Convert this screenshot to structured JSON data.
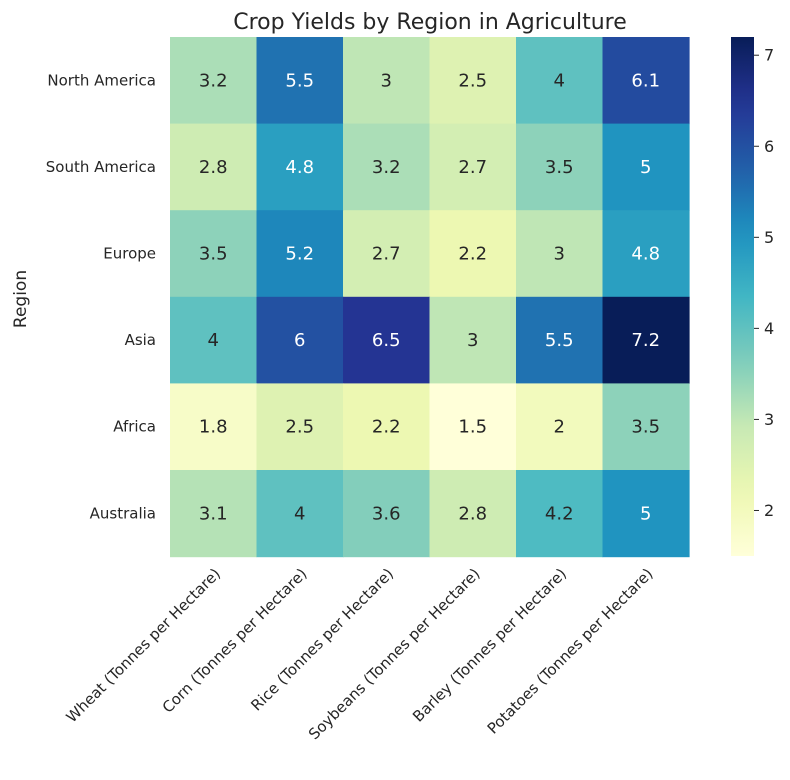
{
  "chart_data": {
    "type": "heatmap",
    "title": "Crop Yields by Region in Agriculture",
    "ylabel": "Region",
    "xlabel": "",
    "columns": [
      "Wheat (Tonnes per Hectare)",
      "Corn (Tonnes per Hectare)",
      "Rice (Tonnes per Hectare)",
      "Soybeans (Tonnes per Hectare)",
      "Barley (Tonnes per Hectare)",
      "Potatoes (Tonnes per Hectare)"
    ],
    "rows": [
      "North America",
      "South America",
      "Europe",
      "Asia",
      "Africa",
      "Australia"
    ],
    "values": [
      [
        3.2,
        5.5,
        3.0,
        2.5,
        4.0,
        6.1
      ],
      [
        2.8,
        4.8,
        3.2,
        2.7,
        3.5,
        5.0
      ],
      [
        3.5,
        5.2,
        2.7,
        2.2,
        3.0,
        4.8
      ],
      [
        4.0,
        6.0,
        6.5,
        3.0,
        5.5,
        7.2
      ],
      [
        1.8,
        2.5,
        2.2,
        1.5,
        2.0,
        3.5
      ],
      [
        3.1,
        4.0,
        3.6,
        2.8,
        4.2,
        5.0
      ]
    ],
    "cell_labels": [
      [
        "3.2",
        "5.5",
        "3",
        "2.5",
        "4",
        "6.1"
      ],
      [
        "2.8",
        "4.8",
        "3.2",
        "2.7",
        "3.5",
        "5"
      ],
      [
        "3.5",
        "5.2",
        "2.7",
        "2.2",
        "3",
        "4.8"
      ],
      [
        "4",
        "6",
        "6.5",
        "3",
        "5.5",
        "7.2"
      ],
      [
        "1.8",
        "2.5",
        "2.2",
        "1.5",
        "2",
        "3.5"
      ],
      [
        "3.1",
        "4",
        "3.6",
        "2.8",
        "4.2",
        "5"
      ]
    ],
    "colorscale": "YlGnBu",
    "colorbar": {
      "range": [
        1.5,
        7.2
      ],
      "ticks": [
        2,
        3,
        4,
        5,
        6,
        7
      ],
      "tick_labels": [
        "2",
        "3",
        "4",
        "5",
        "6",
        "7"
      ]
    },
    "grid": false,
    "legend": "colorbar-right"
  }
}
